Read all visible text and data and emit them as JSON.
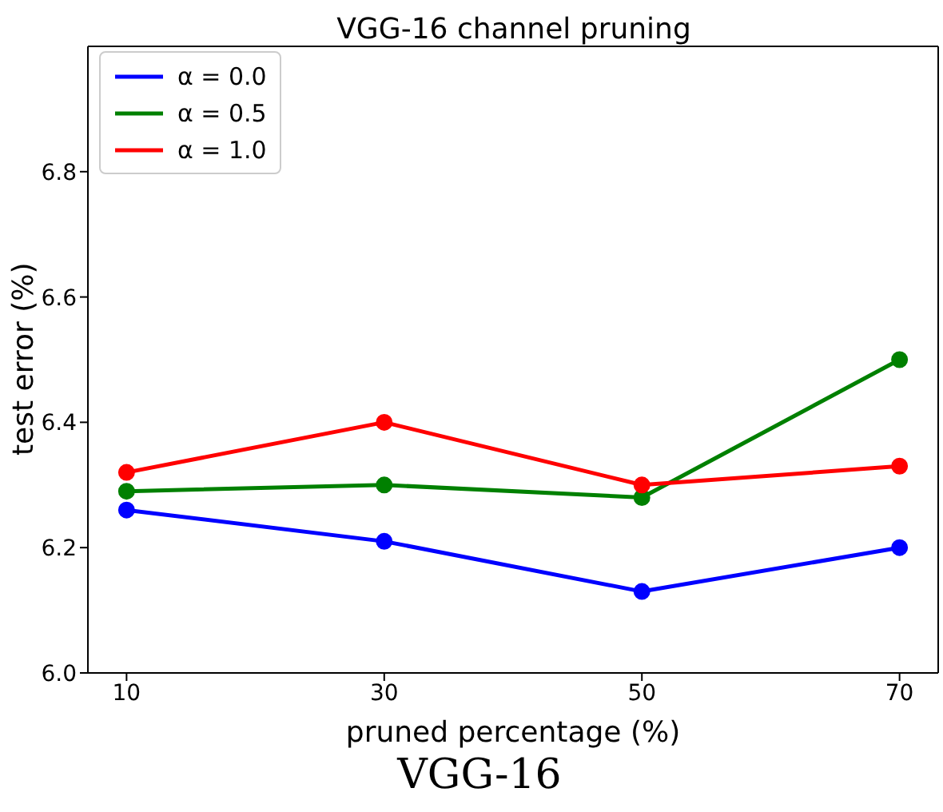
{
  "chart_data": {
    "type": "line",
    "title": "VGG-16 channel pruning",
    "xlabel": "pruned percentage (%)",
    "ylabel": "test error (%)",
    "annotations": [
      "VGG-16"
    ],
    "x": [
      10,
      30,
      50,
      70
    ],
    "series": [
      {
        "name": "α = 0.0",
        "color": "#0000ff",
        "values": [
          6.26,
          6.21,
          6.13,
          6.2
        ]
      },
      {
        "name": "α = 0.5",
        "color": "#008000",
        "values": [
          6.29,
          6.3,
          6.28,
          6.5
        ]
      },
      {
        "name": "α = 1.0",
        "color": "#ff0000",
        "values": [
          6.32,
          6.4,
          6.3,
          6.33
        ]
      }
    ],
    "xlim": [
      7,
      73
    ],
    "xticks": [
      10,
      30,
      50,
      70
    ],
    "ylim": [
      6.0,
      7.0
    ],
    "yticks": [
      {
        "value": 6.0,
        "label": "6.0"
      },
      {
        "value": 6.2,
        "label": "6.2"
      },
      {
        "value": 6.4,
        "label": "6.4"
      },
      {
        "value": 6.6,
        "label": "6.6"
      },
      {
        "value": 6.8,
        "label": "6.8"
      }
    ],
    "grid": false,
    "legend": "top left",
    "marker": "circle",
    "line_style": "solid"
  }
}
